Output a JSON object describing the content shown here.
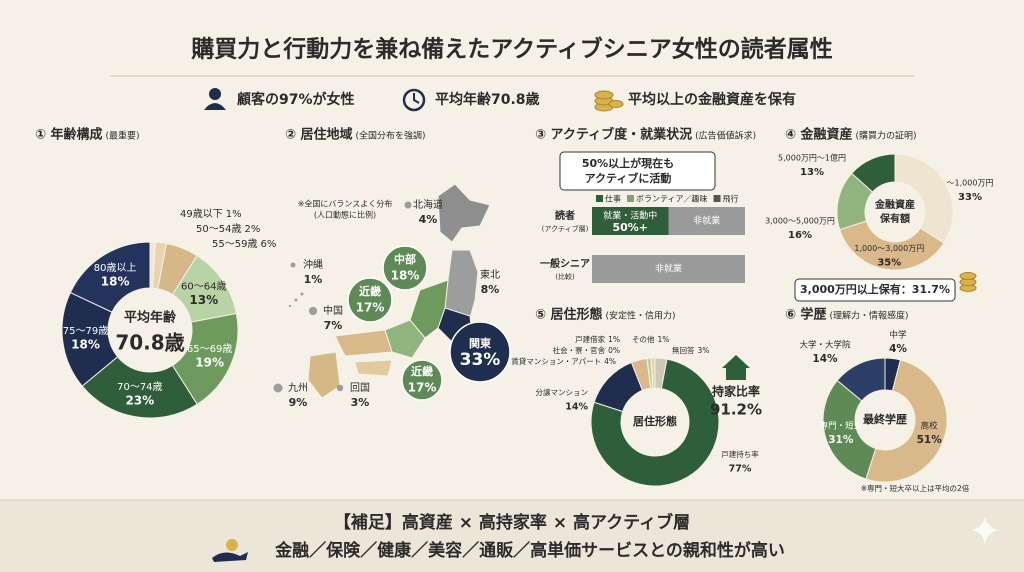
{
  "header": {
    "title": "購買力と行動力を兼ね備えたアクティブシニア女性の読者属性",
    "badges": [
      "顧客の97%が女性",
      "平均年齢70.8歳",
      "平均以上の金融資産を保有"
    ]
  },
  "map_section": {
    "title": "② 居住地域",
    "subtitle": "(全国分布を強調)",
    "note": [
      "※全国にバランスよく分布",
      "(人口動態に比例)"
    ],
    "regions": [
      {
        "name": "北海道",
        "value": 4,
        "label": "4%"
      },
      {
        "name": "東北",
        "value": 8,
        "label": "8%"
      },
      {
        "name": "関東",
        "value": 33,
        "label": "33%",
        "highlight": true,
        "color": "#1f2d4e"
      },
      {
        "name": "中部",
        "value": 18,
        "label": "18%",
        "highlight": true,
        "color": "#5d8a55"
      },
      {
        "name": "近畿",
        "value": 17,
        "label": "17%",
        "highlight": true,
        "color": "#5d8a55"
      },
      {
        "name": "近畿",
        "value": 17,
        "label": "17%",
        "highlight": true,
        "color": "#5d8a55"
      },
      {
        "name": "中国",
        "value": 7,
        "label": "7%"
      },
      {
        "name": "回国",
        "value": 3,
        "label": "3%"
      },
      {
        "name": "九州",
        "value": 9,
        "label": "9%"
      },
      {
        "name": "沖縄",
        "value": 1,
        "label": "1%"
      }
    ]
  },
  "chart_data": [
    {
      "type": "donut",
      "title": "① 年齢構成",
      "subtitle": "(最重要)",
      "center_lines": [
        "平均年齢",
        "70.8歳"
      ],
      "categories": [
        "49歳以下",
        "50～54歳",
        "55～59歳",
        "60～64歳",
        "65～69歳",
        "70～74歳",
        "75～79歳",
        "80歳以上"
      ],
      "values": [
        1,
        2,
        6,
        13,
        19,
        23,
        18,
        18
      ],
      "value_labels": [
        "1%",
        "2%",
        "6%",
        "13%",
        "19%",
        "23%",
        "18%",
        "18%"
      ],
      "colors": [
        "#f1e7d3",
        "#e7d4b0",
        "#d6b887",
        "#b8d3a4",
        "#6f9a5e",
        "#2f5e3a",
        "#1f2d4e",
        "#24335c"
      ]
    },
    {
      "type": "stacked_bar",
      "title": "③ アクティブ度・就業状況",
      "subtitle": "(広告価値訴求)",
      "callout": [
        "50%以上が現在も",
        "アクティブに活動"
      ],
      "legend_items": [
        "仕事",
        "ボランティア／趣味",
        "飛行"
      ],
      "legend_colors": [
        "#2f5e3a",
        "#7aa86a",
        "#555555"
      ],
      "categories": [
        "読者",
        "一般シニア"
      ],
      "category_notes": [
        "(アクティブ層)",
        "(比較)"
      ],
      "xlim": [
        0,
        100
      ],
      "series": [
        {
          "name": "就業・活動中",
          "color": "#2f5e3a",
          "values": [
            50,
            null
          ],
          "value_labels": [
            "50%+",
            null
          ]
        },
        {
          "name": "非就業",
          "color": "#9a9a9a",
          "values": [
            50,
            100
          ]
        }
      ]
    },
    {
      "type": "donut",
      "title": "④ 金融資産",
      "subtitle": "(購買力の証明)",
      "center_lines": [
        "金融資産",
        "保有額"
      ],
      "categories": [
        "～1,000万円",
        "1,000～3,000万円",
        "3,000～5,000万円",
        "5,000万円～1億円"
      ],
      "values": [
        33,
        35,
        16,
        13
      ],
      "value_labels": [
        "33%",
        "35%",
        "16%",
        "13%"
      ],
      "colors": [
        "#efe4cf",
        "#d9b98a",
        "#8fb47e",
        "#2f5e3a"
      ],
      "callout": "3,000万円以上保有：31.7%"
    },
    {
      "type": "donut",
      "title": "⑤ 居住形態",
      "subtitle": "(安定性・信用力)",
      "center_lines": [
        "居住形態"
      ],
      "categories": [
        "無回答",
        "戸建持ち率",
        "分譲マンション",
        "賃貸マンション・アパート",
        "社会・寮・官舎",
        "戸建借家",
        "その他"
      ],
      "values": [
        3,
        77,
        14,
        4,
        0,
        1,
        1
      ],
      "value_labels": [
        "3%",
        "77%",
        "14%",
        "4%",
        "0%",
        "1%",
        "1%"
      ],
      "colors": [
        "#cfc7b8",
        "#2f5e3a",
        "#1f2d4e",
        "#d9b98a",
        "#8a8a8a",
        "#b8d3a4",
        "#e7d4b0"
      ],
      "aside": [
        "持家比率",
        "91.2%"
      ]
    },
    {
      "type": "donut",
      "title": "⑥ 学歴",
      "subtitle": "(理解力・情報感度)",
      "center_lines": [
        "最終学歴"
      ],
      "categories": [
        "中学",
        "高校",
        "専門・短大",
        "大学・大学院"
      ],
      "values": [
        4,
        51,
        31,
        14
      ],
      "value_labels": [
        "4%",
        "51%",
        "31%",
        "14%"
      ],
      "colors": [
        "#1f2d4e",
        "#d9b98a",
        "#5d8a55",
        "#2c3f66"
      ],
      "note": "※専門・短大卒以上は平均の2倍"
    }
  ],
  "footer": {
    "line1": "【補足】高資産 × 高持家率 × 高アクティブ層",
    "line2": "金融／保険／健康／美容／通販／高単価サービスとの親和性が高い"
  }
}
